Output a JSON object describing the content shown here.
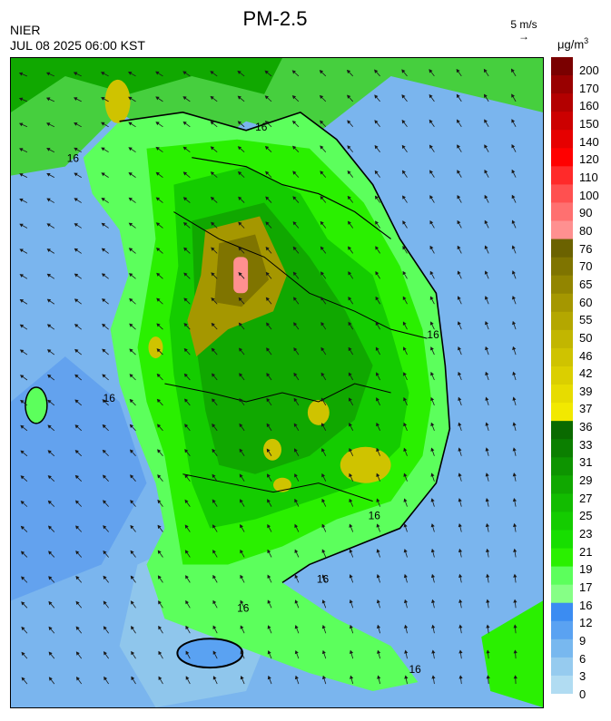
{
  "header": {
    "title": "PM-2.5",
    "agency": "NIER",
    "datetime": "JUL 08 2025 06:00 KST",
    "wind_scale_label": "5 m/s",
    "wind_scale_arrow": "→",
    "unit_base": "μg/m",
    "unit_exp": "3"
  },
  "colorbar": {
    "ticks": [
      "200",
      "170",
      "160",
      "150",
      "140",
      "120",
      "110",
      "100",
      "90",
      "80",
      "76",
      "70",
      "65",
      "60",
      "55",
      "50",
      "46",
      "42",
      "39",
      "37",
      "36",
      "33",
      "31",
      "29",
      "27",
      "25",
      "23",
      "21",
      "19",
      "17",
      "16",
      "12",
      "9",
      "6",
      "3",
      "0"
    ],
    "colors": [
      "#7a0000",
      "#990000",
      "#b30000",
      "#cc0000",
      "#e60000",
      "#ff0000",
      "#ff2a2a",
      "#ff5050",
      "#ff7070",
      "#ff9090",
      "#6b6200",
      "#7f7400",
      "#928500",
      "#a59700",
      "#b4a700",
      "#c2b600",
      "#cfc300",
      "#dbcf00",
      "#e7dc00",
      "#f2e900",
      "#0a6a00",
      "#0b7f00",
      "#0d9400",
      "#10a800",
      "#12bc00",
      "#14cc00",
      "#17de00",
      "#2af000",
      "#5cff5c",
      "#86ff86",
      "#3b8cf2",
      "#5aa2f2",
      "#78b8ef",
      "#96cbef",
      "#b1dcf2"
    ]
  },
  "map_labels": [
    "16",
    "16",
    "16",
    "16",
    "16",
    "16",
    "16",
    "16"
  ],
  "map_icons": {
    "wind": "wind-arrow-icon"
  }
}
